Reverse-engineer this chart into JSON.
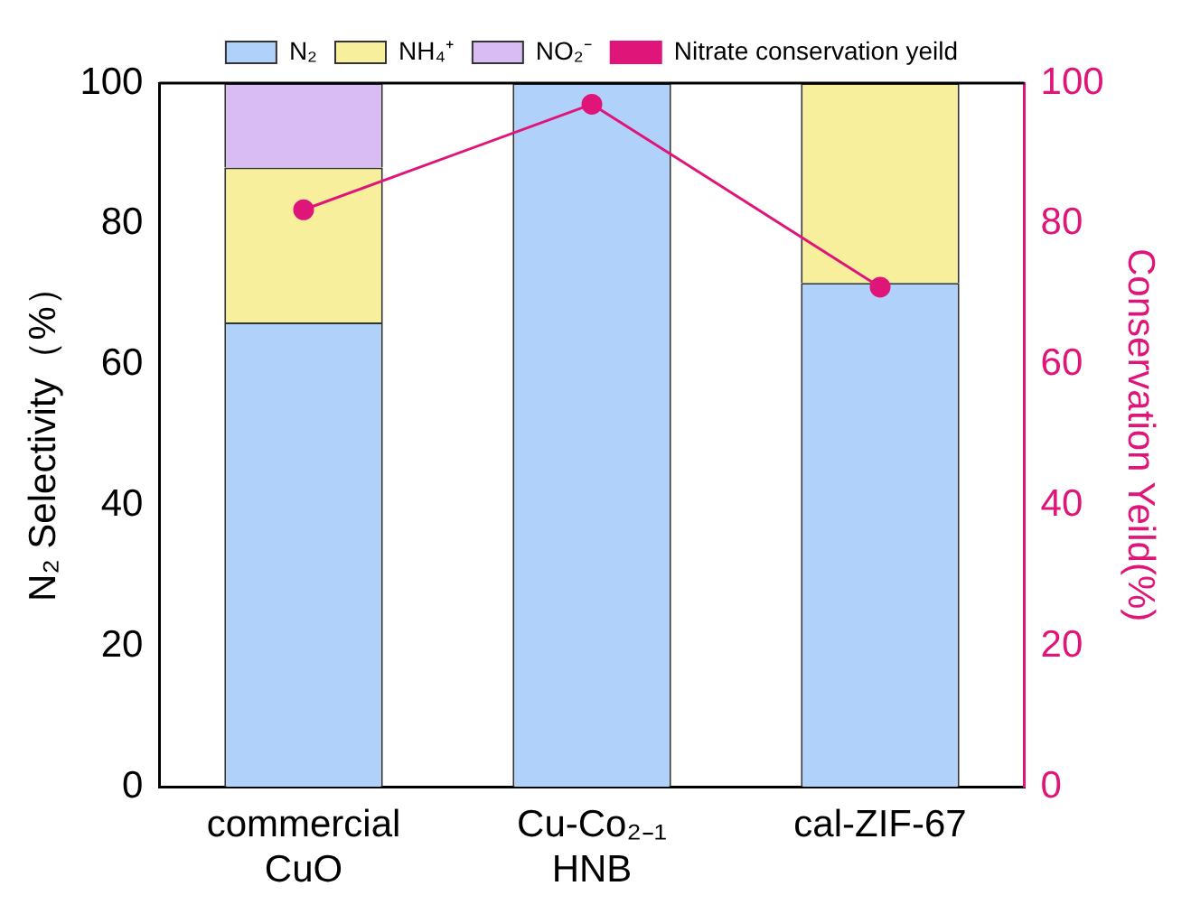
{
  "chart_data": {
    "type": "bar",
    "stacked": true,
    "categories": [
      "commercial\nCuO",
      "Cu-Co₂₋₁\nHNB",
      "cal-ZIF-67"
    ],
    "ylabel": "N₂ Selectivity（%）",
    "y2label": "Conservation Yeild(%)",
    "ylim": [
      0,
      100
    ],
    "yticks": [
      0,
      20,
      40,
      60,
      80,
      100
    ],
    "y2lim": [
      0,
      100
    ],
    "y2ticks": [
      0,
      20,
      40,
      60,
      80,
      100
    ],
    "legend": "top",
    "grid": false,
    "marker": "circle",
    "series": [
      {
        "name": "N₂",
        "color": "#b0d2fa",
        "values": [
          66,
          100,
          71.6
        ]
      },
      {
        "name": "NH₄⁺",
        "color": "#f8ef9c",
        "values": [
          22,
          0,
          28.4
        ]
      },
      {
        "name": "NO₂⁻",
        "color": "#dabcf5",
        "values": [
          12,
          0,
          0
        ]
      },
      {
        "name": "Nitrate conservation yeild",
        "type": "line",
        "axis": "y2",
        "color": "#e0157a",
        "values": [
          82,
          97,
          71
        ]
      }
    ]
  }
}
